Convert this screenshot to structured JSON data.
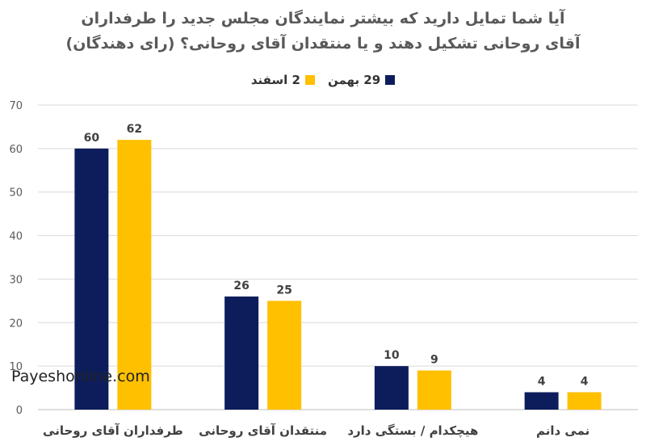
{
  "chart_data": {
    "type": "bar",
    "title": "آیا شما تمایل دارید که بیشتر نمایندگان مجلس جدید را طرفداران آقای روحانی تشکیل دهند و یا منتقدان آقای روحانی؟ (رای دهندگان)",
    "categories": [
      "طرفداران آقای روحانی",
      "منتقدان آقای روحانی",
      "هیچکدام / بستگی دارد",
      "نمی دانم"
    ],
    "series": [
      {
        "name": "29 بهمن",
        "values": [
          60,
          26,
          10,
          4
        ],
        "color": "#0d1d5c"
      },
      {
        "name": "2 اسفند",
        "values": [
          62,
          25,
          9,
          4
        ],
        "color": "#ffc000"
      }
    ],
    "ylim": [
      0,
      70
    ],
    "yticks": [
      0,
      10,
      20,
      30,
      40,
      50,
      60,
      70
    ],
    "grid": true,
    "legend": "top-center",
    "xlabel": "",
    "ylabel": ""
  },
  "watermark": "Payeshonline.com"
}
